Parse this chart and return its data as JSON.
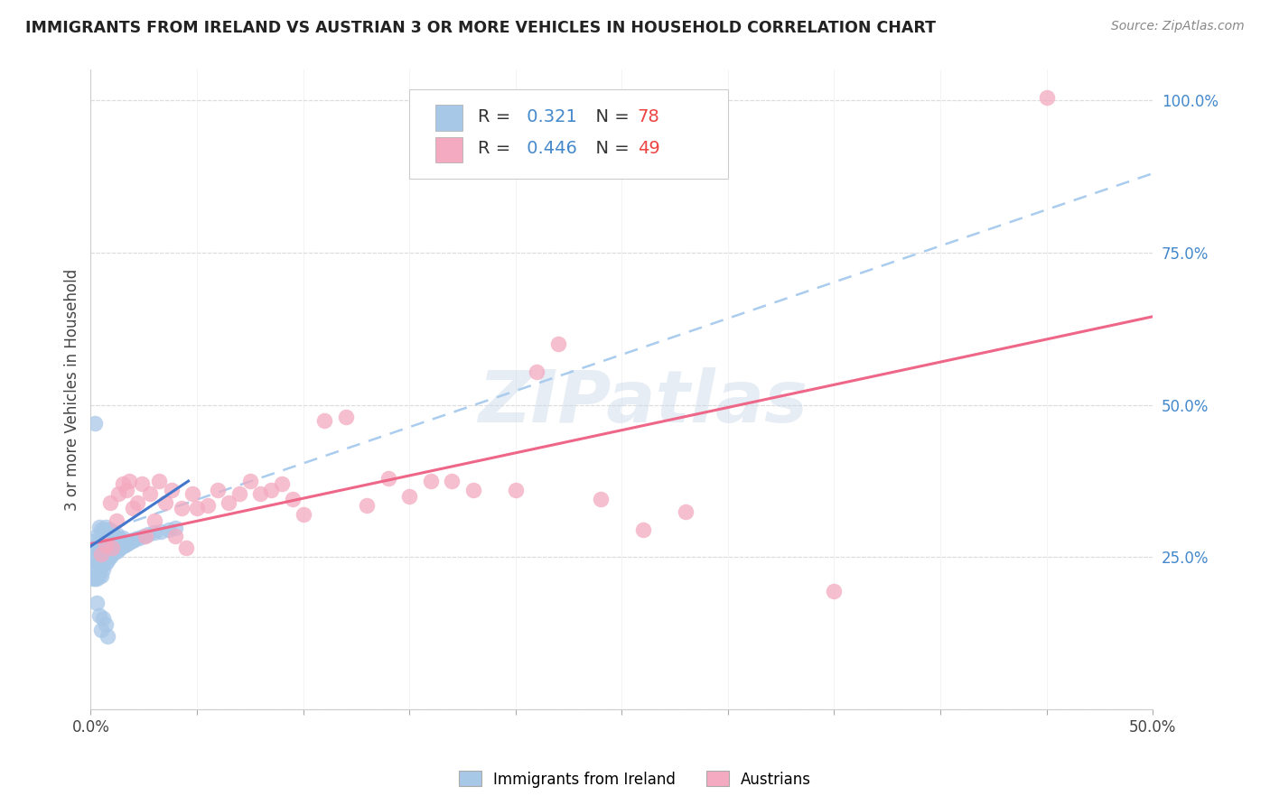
{
  "title": "IMMIGRANTS FROM IRELAND VS AUSTRIAN 3 OR MORE VEHICLES IN HOUSEHOLD CORRELATION CHART",
  "source": "Source: ZipAtlas.com",
  "ylabel": "3 or more Vehicles in Household",
  "watermark": "ZIPatlas",
  "xlim": [
    0.0,
    0.5
  ],
  "ylim": [
    0.0,
    1.05
  ],
  "ireland_R": 0.321,
  "ireland_N": 78,
  "austrian_R": 0.446,
  "austrian_N": 49,
  "ireland_color": "#a8c8e8",
  "austrian_color": "#f4aac0",
  "ireland_line_color": "#4477cc",
  "austrian_line_color": "#ee6688",
  "trendline_color": "#aaccee",
  "ireland_x": [
    0.001,
    0.001,
    0.002,
    0.002,
    0.002,
    0.003,
    0.003,
    0.003,
    0.003,
    0.003,
    0.004,
    0.004,
    0.004,
    0.004,
    0.004,
    0.005,
    0.005,
    0.005,
    0.005,
    0.005,
    0.005,
    0.006,
    0.006,
    0.006,
    0.006,
    0.006,
    0.007,
    0.007,
    0.007,
    0.007,
    0.007,
    0.007,
    0.008,
    0.008,
    0.008,
    0.008,
    0.008,
    0.009,
    0.009,
    0.009,
    0.009,
    0.009,
    0.01,
    0.01,
    0.01,
    0.01,
    0.011,
    0.011,
    0.011,
    0.012,
    0.012,
    0.012,
    0.013,
    0.013,
    0.014,
    0.014,
    0.015,
    0.015,
    0.016,
    0.017,
    0.018,
    0.019,
    0.02,
    0.021,
    0.023,
    0.025,
    0.027,
    0.03,
    0.033,
    0.037,
    0.04,
    0.002,
    0.003,
    0.004,
    0.005,
    0.006,
    0.007,
    0.008
  ],
  "ireland_y": [
    0.245,
    0.215,
    0.215,
    0.235,
    0.265,
    0.215,
    0.23,
    0.25,
    0.27,
    0.285,
    0.22,
    0.24,
    0.26,
    0.28,
    0.3,
    0.22,
    0.235,
    0.25,
    0.265,
    0.28,
    0.295,
    0.23,
    0.245,
    0.26,
    0.275,
    0.29,
    0.24,
    0.255,
    0.265,
    0.275,
    0.285,
    0.3,
    0.245,
    0.255,
    0.265,
    0.28,
    0.295,
    0.25,
    0.26,
    0.27,
    0.282,
    0.295,
    0.255,
    0.265,
    0.278,
    0.29,
    0.258,
    0.272,
    0.285,
    0.26,
    0.275,
    0.288,
    0.262,
    0.278,
    0.265,
    0.28,
    0.268,
    0.282,
    0.27,
    0.272,
    0.275,
    0.277,
    0.278,
    0.28,
    0.282,
    0.285,
    0.288,
    0.29,
    0.292,
    0.295,
    0.298,
    0.47,
    0.175,
    0.155,
    0.13,
    0.15,
    0.14,
    0.12
  ],
  "austrian_x": [
    0.005,
    0.007,
    0.009,
    0.01,
    0.012,
    0.013,
    0.015,
    0.017,
    0.018,
    0.02,
    0.022,
    0.024,
    0.026,
    0.028,
    0.03,
    0.032,
    0.035,
    0.038,
    0.04,
    0.043,
    0.045,
    0.048,
    0.05,
    0.055,
    0.06,
    0.065,
    0.07,
    0.075,
    0.08,
    0.085,
    0.09,
    0.095,
    0.1,
    0.11,
    0.12,
    0.13,
    0.14,
    0.15,
    0.16,
    0.17,
    0.18,
    0.2,
    0.21,
    0.22,
    0.24,
    0.26,
    0.28,
    0.35,
    0.45
  ],
  "austrian_y": [
    0.255,
    0.27,
    0.34,
    0.265,
    0.31,
    0.355,
    0.37,
    0.36,
    0.375,
    0.33,
    0.34,
    0.37,
    0.285,
    0.355,
    0.31,
    0.375,
    0.34,
    0.36,
    0.285,
    0.33,
    0.265,
    0.355,
    0.33,
    0.335,
    0.36,
    0.34,
    0.355,
    0.375,
    0.355,
    0.36,
    0.37,
    0.345,
    0.32,
    0.475,
    0.48,
    0.335,
    0.38,
    0.35,
    0.375,
    0.375,
    0.36,
    0.36,
    0.555,
    0.6,
    0.345,
    0.295,
    0.325,
    0.195,
    1.005
  ],
  "ireland_trend_x": [
    0.0,
    0.046
  ],
  "ireland_trend_y": [
    0.268,
    0.375
  ],
  "austrian_trend_x": [
    0.0,
    0.5
  ],
  "austrian_trend_y": [
    0.272,
    0.645
  ],
  "dashed_trend_x": [
    0.0,
    0.5
  ],
  "dashed_trend_y": [
    0.285,
    0.88
  ]
}
